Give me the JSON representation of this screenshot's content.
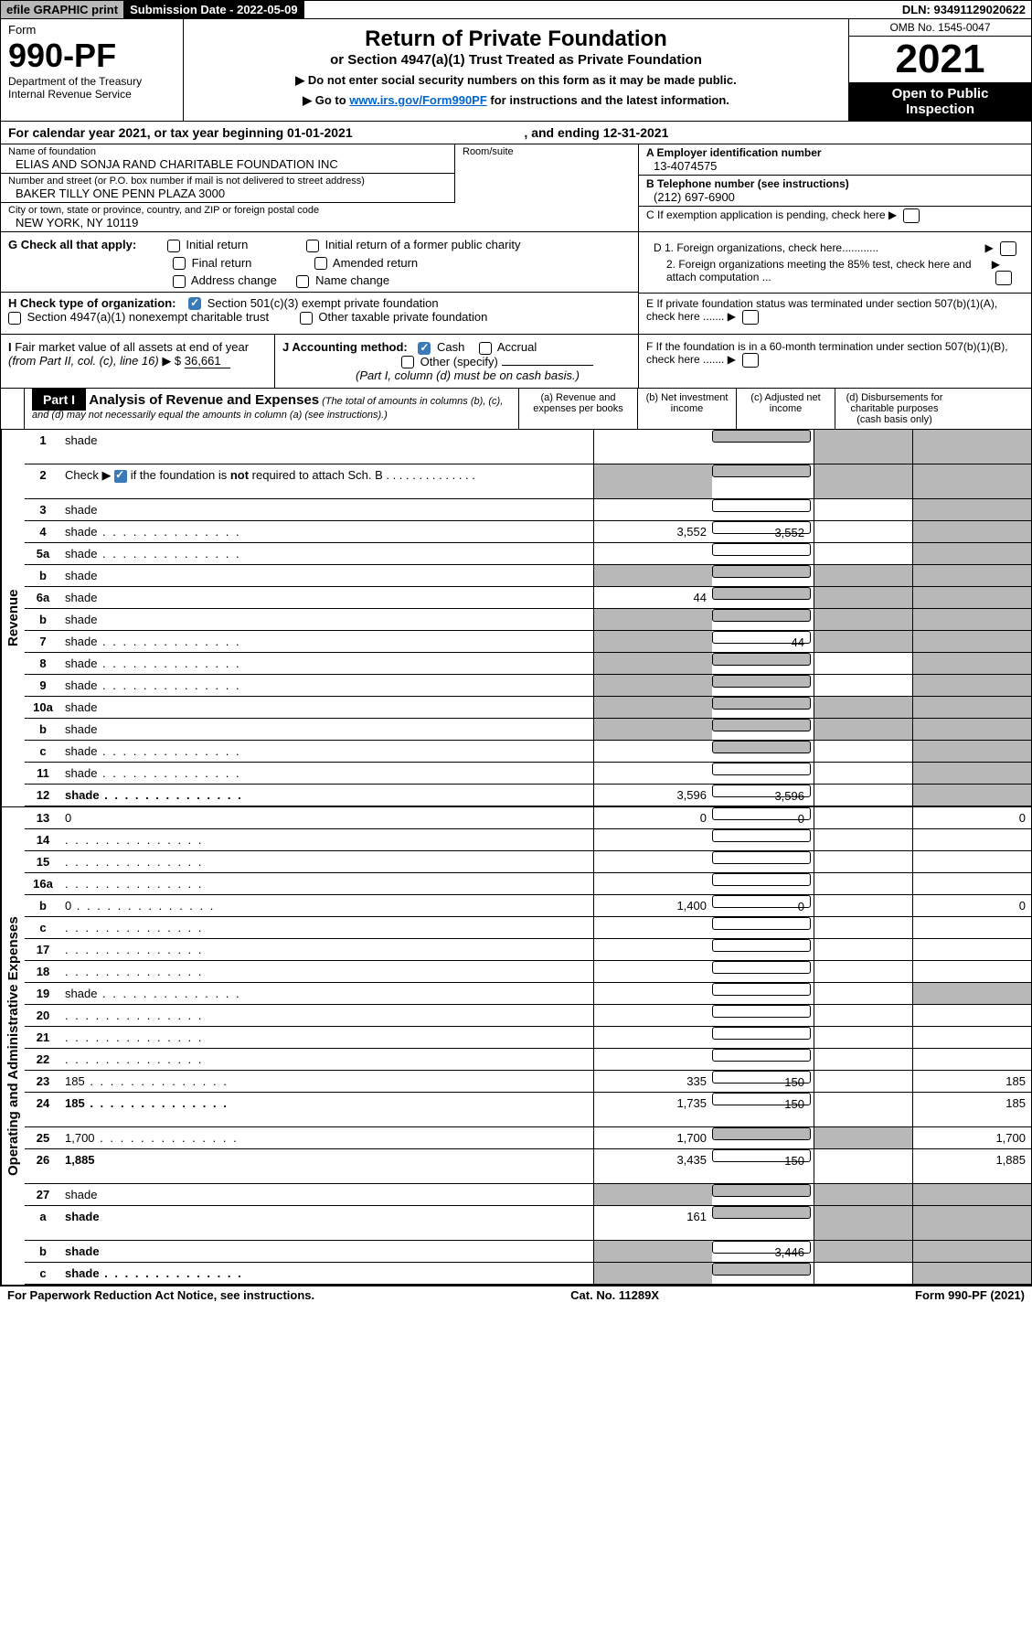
{
  "top": {
    "efile": "efile GRAPHIC print",
    "subdate_label": "Submission Date - 2022-05-09",
    "dln": "DLN: 93491129020622"
  },
  "header": {
    "form_label": "Form",
    "form_no": "990-PF",
    "dept1": "Department of the Treasury",
    "dept2": "Internal Revenue Service",
    "title": "Return of Private Foundation",
    "subtitle": "or Section 4947(a)(1) Trust Treated as Private Foundation",
    "note1": "▶ Do not enter social security numbers on this form as it may be made public.",
    "note2_pre": "▶ Go to ",
    "note2_link": "www.irs.gov/Form990PF",
    "note2_post": " for instructions and the latest information.",
    "omb": "OMB No. 1545-0047",
    "year": "2021",
    "inspect1": "Open to Public",
    "inspect2": "Inspection"
  },
  "cal": "For calendar year 2021, or tax year beginning 01-01-2021",
  "cal_end": ", and ending 12-31-2021",
  "info": {
    "name_lbl": "Name of foundation",
    "name": "ELIAS AND SONJA RAND CHARITABLE FOUNDATION INC",
    "addr_lbl": "Number and street (or P.O. box number if mail is not delivered to street address)",
    "addr": "BAKER TILLY ONE PENN PLAZA 3000",
    "room_lbl": "Room/suite",
    "city_lbl": "City or town, state or province, country, and ZIP or foreign postal code",
    "city": "NEW YORK, NY  10119",
    "ein_lbl": "A Employer identification number",
    "ein": "13-4074575",
    "tel_lbl": "B Telephone number (see instructions)",
    "tel": "(212) 697-6900",
    "c_lbl": "C If exemption application is pending, check here",
    "d1": "D 1. Foreign organizations, check here............",
    "d2": "2. Foreign organizations meeting the 85% test, check here and attach computation ...",
    "e_lbl": "E  If private foundation status was terminated under section 507(b)(1)(A), check here .......",
    "f_lbl": "F  If the foundation is in a 60-month termination under section 507(b)(1)(B), check here ......."
  },
  "g": {
    "label": "G Check all that apply:",
    "initial": "Initial return",
    "final": "Final return",
    "addr_chg": "Address change",
    "initial_former": "Initial return of a former public charity",
    "amended": "Amended return",
    "name_chg": "Name change"
  },
  "h": {
    "label": "H Check type of organization:",
    "501c3": "Section 501(c)(3) exempt private foundation",
    "4947": "Section 4947(a)(1) nonexempt charitable trust",
    "other_tax": "Other taxable private foundation"
  },
  "i": {
    "label": "I Fair market value of all assets at end of year (from Part II, col. (c), line 16)",
    "val": "36,661"
  },
  "j": {
    "label": "J Accounting method:",
    "cash": "Cash",
    "accrual": "Accrual",
    "other": "Other (specify)",
    "note": "(Part I, column (d) must be on cash basis.)"
  },
  "part1": {
    "label": "Part I",
    "title": "Analysis of Revenue and Expenses",
    "title_paren": " (The total of amounts in columns (b), (c), and (d) may not necessarily equal the amounts in column (a) (see instructions).)",
    "col_a": "(a)   Revenue and expenses per books",
    "col_b": "(b)   Net investment income",
    "col_c": "(c)   Adjusted net income",
    "col_d": "(d)   Disbursements for charitable purposes (cash basis only)"
  },
  "side": {
    "rev": "Revenue",
    "exp": "Operating and Administrative Expenses"
  },
  "rows": [
    {
      "n": "1",
      "d": "shade",
      "a": "",
      "b": "shade",
      "c": "shade",
      "tall": true
    },
    {
      "n": "2",
      "d": "shade",
      "a": "shade",
      "b": "shade",
      "c": "shade",
      "check": true,
      "tall": true
    },
    {
      "n": "3",
      "d": "shade",
      "a": "",
      "b": "",
      "c": ""
    },
    {
      "n": "4",
      "d": "shade",
      "a": "3,552",
      "b": "3,552",
      "c": "",
      "dots": true
    },
    {
      "n": "5a",
      "d": "shade",
      "a": "",
      "b": "",
      "c": "",
      "dots": true
    },
    {
      "n": "b",
      "d": "shade",
      "a": "shade",
      "b": "shade",
      "c": "shade"
    },
    {
      "n": "6a",
      "d": "shade",
      "a": "44",
      "b": "shade",
      "c": "shade"
    },
    {
      "n": "b",
      "d": "shade",
      "a": "shade",
      "b": "shade",
      "c": "shade"
    },
    {
      "n": "7",
      "d": "shade",
      "a": "shade",
      "b": "44",
      "c": "shade",
      "dots": true
    },
    {
      "n": "8",
      "d": "shade",
      "a": "shade",
      "b": "shade",
      "c": "",
      "dots": true
    },
    {
      "n": "9",
      "d": "shade",
      "a": "shade",
      "b": "shade",
      "c": "",
      "dots": true
    },
    {
      "n": "10a",
      "d": "shade",
      "a": "shade",
      "b": "shade",
      "c": "shade"
    },
    {
      "n": "b",
      "d": "shade",
      "a": "shade",
      "b": "shade",
      "c": "shade"
    },
    {
      "n": "c",
      "d": "shade",
      "a": "",
      "b": "shade",
      "c": "",
      "dots": true
    },
    {
      "n": "11",
      "d": "shade",
      "a": "",
      "b": "",
      "c": "",
      "dots": true
    },
    {
      "n": "12",
      "d": "shade",
      "a": "3,596",
      "b": "3,596",
      "c": "",
      "bold": true,
      "dots": true
    }
  ],
  "exp_rows": [
    {
      "n": "13",
      "d": "0",
      "a": "0",
      "b": "0",
      "c": ""
    },
    {
      "n": "14",
      "d": "",
      "a": "",
      "b": "",
      "c": "",
      "dots": true
    },
    {
      "n": "15",
      "d": "",
      "a": "",
      "b": "",
      "c": "",
      "dots": true
    },
    {
      "n": "16a",
      "d": "",
      "a": "",
      "b": "",
      "c": "",
      "dots": true
    },
    {
      "n": "b",
      "d": "0",
      "a": "1,400",
      "b": "0",
      "c": "",
      "dots": true
    },
    {
      "n": "c",
      "d": "",
      "a": "",
      "b": "",
      "c": "",
      "dots": true
    },
    {
      "n": "17",
      "d": "",
      "a": "",
      "b": "",
      "c": "",
      "dots": true
    },
    {
      "n": "18",
      "d": "",
      "a": "",
      "b": "",
      "c": "",
      "dots": true
    },
    {
      "n": "19",
      "d": "shade",
      "a": "",
      "b": "",
      "c": "",
      "dots": true
    },
    {
      "n": "20",
      "d": "",
      "a": "",
      "b": "",
      "c": "",
      "dots": true
    },
    {
      "n": "21",
      "d": "",
      "a": "",
      "b": "",
      "c": "",
      "dots": true
    },
    {
      "n": "22",
      "d": "",
      "a": "",
      "b": "",
      "c": "",
      "dots": true
    },
    {
      "n": "23",
      "d": "185",
      "a": "335",
      "b": "150",
      "c": "",
      "dots": true
    },
    {
      "n": "24",
      "d": "185",
      "a": "1,735",
      "b": "150",
      "c": "",
      "bold": true,
      "tall": true,
      "dots": true
    },
    {
      "n": "25",
      "d": "1,700",
      "a": "1,700",
      "b": "shade",
      "c": "shade",
      "dots": true
    },
    {
      "n": "26",
      "d": "1,885",
      "a": "3,435",
      "b": "150",
      "c": "",
      "bold": true,
      "tall": true
    },
    {
      "n": "27",
      "d": "shade",
      "a": "shade",
      "b": "shade",
      "c": "shade"
    },
    {
      "n": "a",
      "d": "shade",
      "a": "161",
      "b": "shade",
      "c": "shade",
      "bold": true,
      "tall": true
    },
    {
      "n": "b",
      "d": "shade",
      "a": "shade",
      "b": "3,446",
      "c": "shade",
      "bold": true
    },
    {
      "n": "c",
      "d": "shade",
      "a": "shade",
      "b": "shade",
      "c": "",
      "bold": true,
      "dots": true
    }
  ],
  "footer": {
    "left": "For Paperwork Reduction Act Notice, see instructions.",
    "mid": "Cat. No. 11289X",
    "right": "Form 990-PF (2021)"
  },
  "colors": {
    "shade_bg": "#b8b8b8",
    "check_bg": "#3a7ab8",
    "link": "#0066cc"
  }
}
